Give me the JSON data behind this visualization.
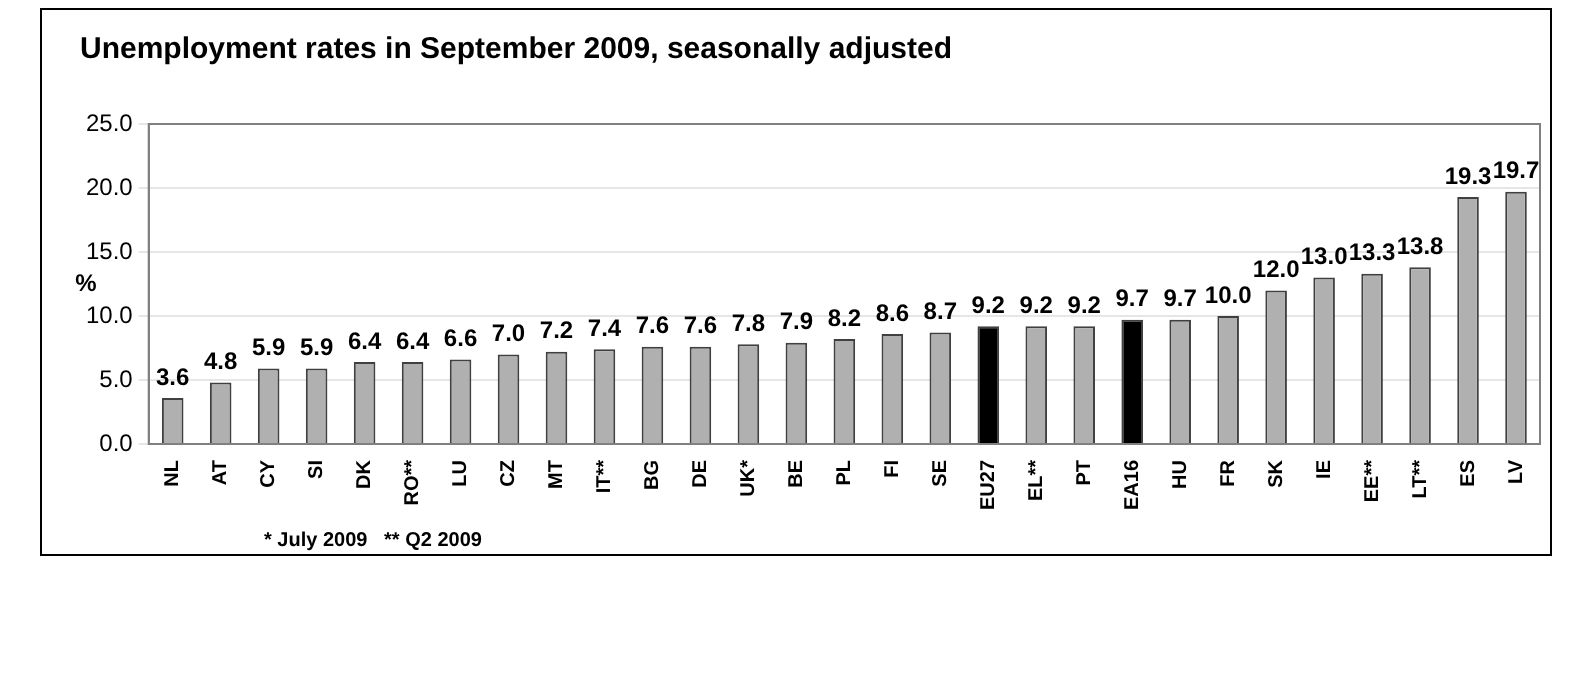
{
  "chart_data": {
    "type": "bar",
    "title": "Unemployment rates in September 2009, seasonally adjusted",
    "ylabel": "%",
    "categories": [
      "NL",
      "AT",
      "CY",
      "SI",
      "DK",
      "RO**",
      "LU",
      "CZ",
      "MT",
      "IT**",
      "BG",
      "DE",
      "UK*",
      "BE",
      "PL",
      "FI",
      "SE",
      "EU27",
      "EL**",
      "PT",
      "EA16",
      "HU",
      "FR",
      "SK",
      "IE",
      "EE**",
      "LT**",
      "ES",
      "LV"
    ],
    "values": [
      3.6,
      4.8,
      5.9,
      5.9,
      6.4,
      6.4,
      6.6,
      7.0,
      7.2,
      7.4,
      7.6,
      7.6,
      7.8,
      7.9,
      8.2,
      8.6,
      8.7,
      9.2,
      9.2,
      9.2,
      9.7,
      9.7,
      10.0,
      12.0,
      13.0,
      13.3,
      13.8,
      19.3,
      19.7
    ],
    "colors": [
      "#b0b0b0",
      "#b0b0b0",
      "#b0b0b0",
      "#b0b0b0",
      "#b0b0b0",
      "#b0b0b0",
      "#b0b0b0",
      "#b0b0b0",
      "#b0b0b0",
      "#b0b0b0",
      "#b0b0b0",
      "#b0b0b0",
      "#b0b0b0",
      "#b0b0b0",
      "#b0b0b0",
      "#b0b0b0",
      "#b0b0b0",
      "#000000",
      "#b0b0b0",
      "#b0b0b0",
      "#000000",
      "#b0b0b0",
      "#b0b0b0",
      "#b0b0b0",
      "#b0b0b0",
      "#b0b0b0",
      "#b0b0b0",
      "#b0b0b0",
      "#b0b0b0"
    ],
    "ylim": [
      0,
      25
    ],
    "yticks": [
      {
        "value": 0,
        "label": "0.0"
      },
      {
        "value": 5,
        "label": "5.0"
      },
      {
        "value": 10,
        "label": "10.0"
      },
      {
        "value": 15,
        "label": "15.0"
      },
      {
        "value": 20,
        "label": "20.0"
      },
      {
        "value": 25,
        "label": "25.0"
      }
    ],
    "value_labels": [
      "3.6",
      "4.8",
      "5.9",
      "5.9",
      "6.4",
      "6.4",
      "6.6",
      "7.0",
      "7.2",
      "7.4",
      "7.6",
      "7.6",
      "7.8",
      "7.9",
      "8.2",
      "8.6",
      "8.7",
      "9.2",
      "9.2",
      "9.2",
      "9.7",
      "9.7",
      "10.0",
      "12.0",
      "13.0",
      "13.3",
      "13.8",
      "19.3",
      "19.7"
    ],
    "grid": "y",
    "legend": false,
    "annotations": [
      "* July 2009   ** Q2 2009"
    ]
  }
}
